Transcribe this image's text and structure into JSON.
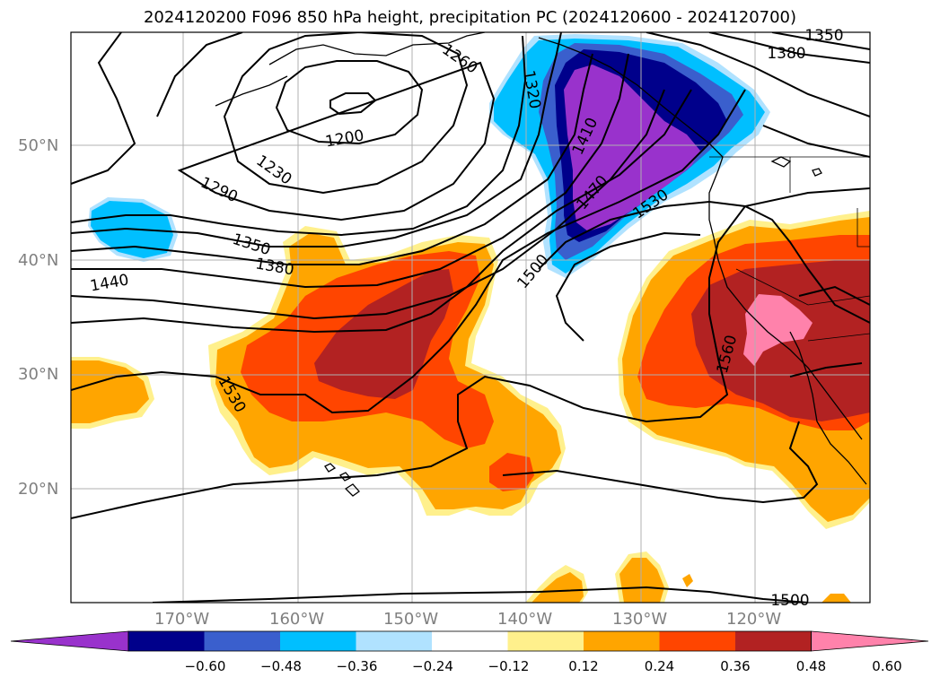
{
  "title": "2024120200 F096 850 hPa height, precipitation PC (2024120600 - 2024120700)",
  "lat_labels": [
    "50°N",
    "40°N",
    "30°N",
    "20°N"
  ],
  "lon_labels": [
    "170°W",
    "160°W",
    "150°W",
    "140°W",
    "130°W",
    "120°W"
  ],
  "contour_labels": [
    "1350",
    "1380",
    "1260",
    "1320",
    "1200",
    "1230",
    "1290",
    "1410",
    "1470",
    "1530",
    "1350",
    "1380",
    "1440",
    "1500",
    "1560",
    "1530",
    "1500"
  ],
  "colorbar": {
    "ticks": [
      "−0.60",
      "−0.48",
      "−0.36",
      "−0.24",
      "−0.12",
      "0.12",
      "0.24",
      "0.36",
      "0.48",
      "0.60"
    ],
    "colors": [
      "#9932cc",
      "#00008b",
      "#3a5fcd",
      "#00bfff",
      "#b0e2ff",
      "#ffffff",
      "#fff08c",
      "#ffa500",
      "#ff4500",
      "#b22222",
      "#ff82ab"
    ]
  },
  "palette": {
    "neg_light": "#b0e2ff",
    "neg_cyan": "#00bfff",
    "neg_blue": "#3a5fcd",
    "neg_navy": "#00008b",
    "neg_purple": "#9932cc",
    "pos_yellow": "#fff08c",
    "pos_orange": "#ffa500",
    "pos_red": "#ff4500",
    "pos_darkred": "#b22222",
    "pos_pink": "#ff82ab"
  }
}
